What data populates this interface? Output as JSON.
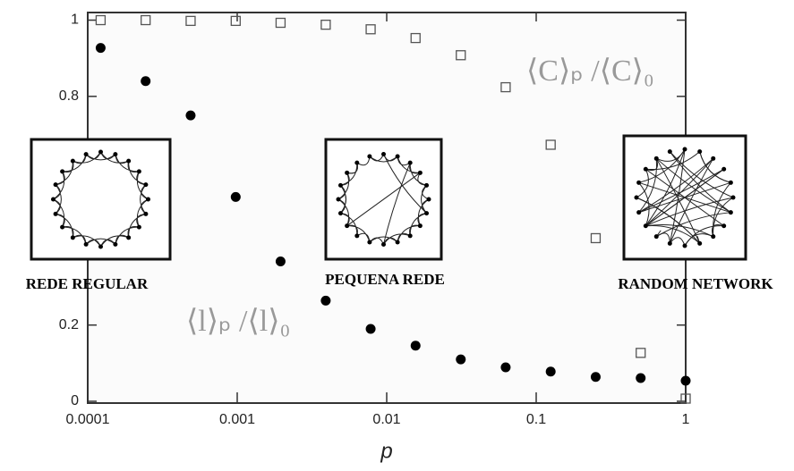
{
  "chart_data": {
    "type": "scatter",
    "x_label": "p",
    "xscale": "log",
    "xlim": [
      0.0001,
      1
    ],
    "xticks": [
      0.0001,
      0.001,
      0.01,
      0.1,
      1
    ],
    "ylim": [
      0,
      1.02
    ],
    "yticks": [
      0,
      0.2,
      0.8,
      1
    ],
    "series": [
      {
        "name": "⟨C⟩ₚ /⟨C⟩₀",
        "marker": "square",
        "color": "#555555",
        "x": [
          0.000122,
          0.000244,
          0.000488,
          0.000977,
          0.00195,
          0.00391,
          0.00781,
          0.0156,
          0.0313,
          0.0625,
          0.125,
          0.25,
          0.5,
          1
        ],
        "values": [
          1.0,
          1.0,
          0.998,
          0.998,
          0.993,
          0.988,
          0.976,
          0.953,
          0.908,
          0.824,
          0.673,
          0.428,
          0.127,
          0.007
        ]
      },
      {
        "name": "⟨l⟩ₚ /⟨l⟩₀",
        "marker": "circle",
        "color": "#000000",
        "x": [
          0.000122,
          0.000244,
          0.000488,
          0.000977,
          0.00195,
          0.00391,
          0.00781,
          0.0156,
          0.0313,
          0.0625,
          0.125,
          0.25,
          0.5,
          1
        ],
        "values": [
          0.927,
          0.84,
          0.75,
          0.536,
          0.367,
          0.264,
          0.19,
          0.146,
          0.11,
          0.089,
          0.078,
          0.064,
          0.061,
          0.054
        ]
      }
    ],
    "insets": [
      "REDE REGULAR",
      "PEQUENA REDE",
      "RANDOM NETWORK"
    ]
  }
}
